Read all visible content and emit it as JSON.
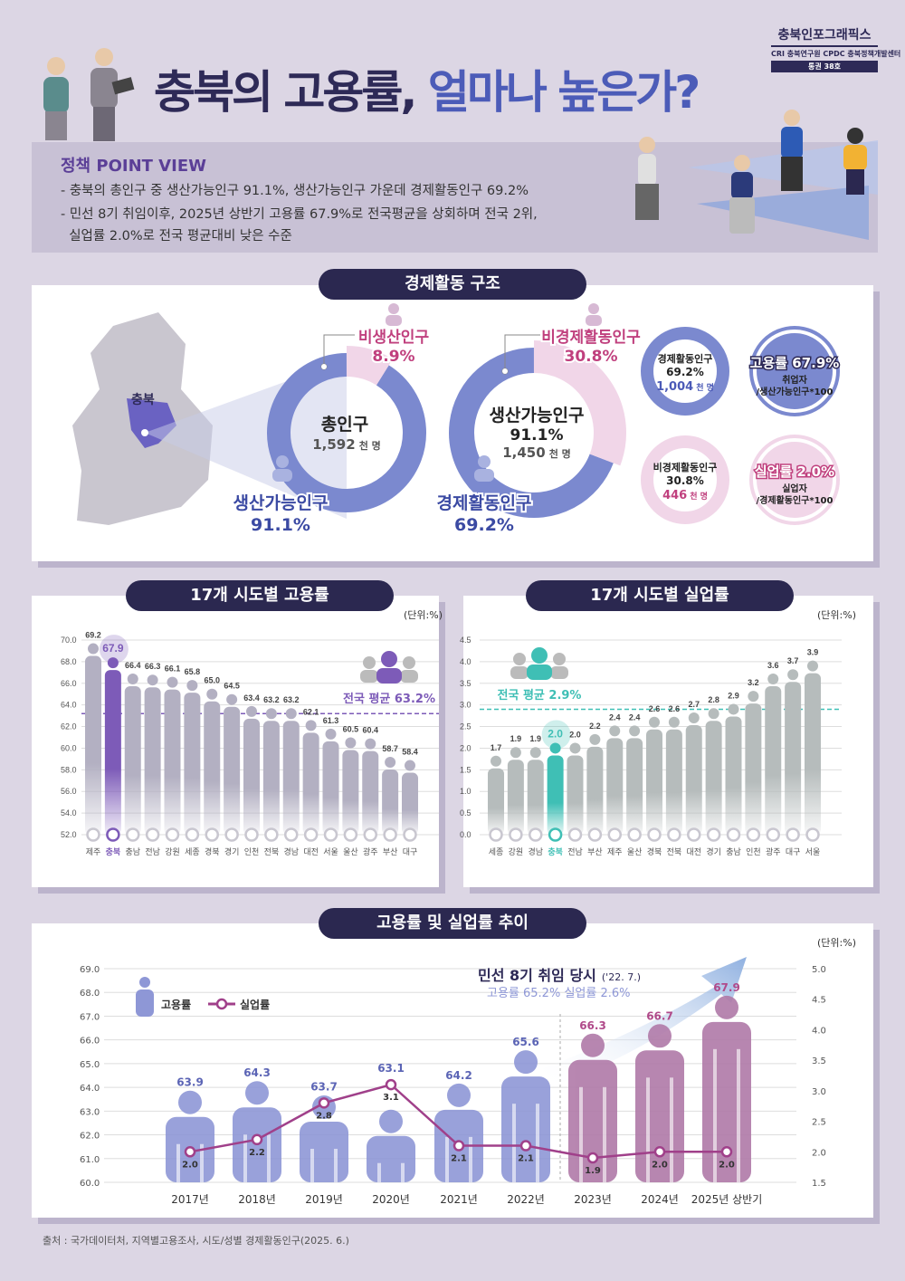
{
  "header": {
    "brand": "충북인포그래픽스",
    "brand_orgs": "CRI 충북연구원 CPDC 충북정책개발센터",
    "issue": "통권 38호",
    "title_part1": "충북의 고용률,",
    "title_part2": "얼마나 높은가?"
  },
  "point_view": {
    "title": "정책 POINT VIEW",
    "lines": [
      "- 충북의 총인구 중 생산가능인구 91.1%, 생산가능인구 가운데 경제활동인구 69.2%",
      "- 민선 8기 취임이후, 2025년 상반기 고용률 67.9%로 전국평균을 상회하며 전국 2위,",
      "  실업률 2.0%로 전국 평균대비 낮은 수준"
    ]
  },
  "structure": {
    "title": "경제활동 구조",
    "map_label": "충북",
    "donut1": {
      "center_title": "총인구",
      "center_value": "1,592",
      "center_unit": "천 명",
      "minor_label": "비생산인구",
      "minor_value": "8.9%",
      "major_label": "생산가능인구",
      "major_value": "91.1%",
      "minor_pct": 8.9
    },
    "donut2": {
      "center_title": "생산가능인구",
      "center_pct": "91.1%",
      "center_value": "1,450",
      "center_unit": "천 명",
      "minor_label": "비경제활동인구",
      "minor_value": "30.8%",
      "major_label": "경제활동인구",
      "major_value": "69.2%",
      "minor_pct": 30.8
    },
    "circles": [
      {
        "l1": "경제활동인구",
        "l2": "69.2%",
        "l3": "1,004",
        "l4": "천 명"
      },
      {
        "l1": "고용률 67.9%",
        "l2": "취업자",
        "l3": "/생산가능인구*100"
      },
      {
        "l1": "비경제활동인구",
        "l2": "30.8%",
        "l3": "446",
        "l4": "천 명"
      },
      {
        "l1": "실업률 2.0%",
        "l2": "실업자",
        "l3": "/경제활동인구*100"
      }
    ],
    "colors": {
      "blue": "#7b89cf",
      "pink": "#f1d6e8",
      "navy": "#2e2a57",
      "magenta": "#c0407e"
    }
  },
  "chart_data": [
    {
      "type": "bar",
      "title": "17개 시도별 고용률",
      "unit_label": "(단위:%)",
      "ylim": [
        52,
        70
      ],
      "yticks": [
        "52.0",
        "54.0",
        "56.0",
        "58.0",
        "60.0",
        "62.0",
        "64.0",
        "66.0",
        "68.0",
        "70.0"
      ],
      "categories": [
        "제주",
        "충북",
        "충남",
        "전남",
        "강원",
        "세종",
        "경북",
        "경기",
        "인천",
        "전북",
        "경남",
        "대전",
        "서울",
        "울산",
        "광주",
        "부산",
        "대구"
      ],
      "values": [
        69.2,
        67.9,
        66.4,
        66.3,
        66.1,
        65.8,
        65.0,
        64.5,
        63.4,
        63.2,
        63.2,
        62.1,
        61.3,
        60.5,
        60.4,
        58.7,
        58.4
      ],
      "highlight": "충북",
      "average": 63.2,
      "average_label": "전국 평균 63.2%",
      "color": "#b3b0c2",
      "highlight_color": "#7d5bb8"
    },
    {
      "type": "bar",
      "title": "17개 시도별 실업률",
      "unit_label": "(단위:%)",
      "ylim": [
        0,
        4.5
      ],
      "yticks": [
        "0.0",
        "0.5",
        "1.0",
        "1.5",
        "2.0",
        "2.5",
        "3.0",
        "3.5",
        "4.0",
        "4.5"
      ],
      "categories": [
        "세종",
        "강원",
        "경남",
        "충북",
        "전남",
        "부산",
        "제주",
        "울산",
        "경북",
        "전북",
        "대전",
        "경기",
        "충남",
        "인천",
        "광주",
        "대구",
        "서울"
      ],
      "values": [
        1.7,
        1.9,
        1.9,
        2.0,
        2.0,
        2.2,
        2.4,
        2.4,
        2.6,
        2.6,
        2.7,
        2.8,
        2.9,
        3.2,
        3.6,
        3.7,
        3.9
      ],
      "highlight": "충북",
      "average": 2.9,
      "average_label": "전국 평균 2.9%",
      "color": "#b6bcbc",
      "highlight_color": "#3fbfb5"
    },
    {
      "type": "bar+line",
      "title": "고용률 및 실업률 추이",
      "unit_label": "(단위:%)",
      "categories": [
        "2017년",
        "2018년",
        "2019년",
        "2020년",
        "2021년",
        "2022년",
        "2023년",
        "2024년",
        "2025년 상반기"
      ],
      "series": [
        {
          "name": "고용률",
          "values": [
            63.9,
            64.3,
            63.7,
            63.1,
            64.2,
            65.6,
            66.3,
            66.7,
            67.9
          ],
          "axis": "left"
        },
        {
          "name": "실업률",
          "values": [
            2.0,
            2.2,
            2.8,
            3.1,
            2.1,
            2.1,
            1.9,
            2.0,
            2.0
          ],
          "axis": "right"
        }
      ],
      "ylim_left": [
        60,
        69
      ],
      "yticks_left": [
        "60.0",
        "61.0",
        "62.0",
        "63.0",
        "64.0",
        "65.0",
        "66.0",
        "67.0",
        "68.0",
        "69.0"
      ],
      "ylim_right": [
        1.5,
        5.0
      ],
      "yticks_right": [
        "1.5",
        "2.0",
        "2.5",
        "3.0",
        "3.5",
        "4.0",
        "4.5",
        "5.0"
      ],
      "annotation_title": "민선 8기 취임 당시",
      "annotation_date": "('22. 7.)",
      "annotation_text": "고용률 65.2% 실업률 2.6%",
      "colors": {
        "bar_before": "#8e97d6",
        "bar_after": "#b07aa8",
        "line": "#a0408a"
      }
    }
  ],
  "source": "출처 : 국가데이터처, 지역별고용조사, 시도/성별 경제활동인구(2025. 6.)"
}
